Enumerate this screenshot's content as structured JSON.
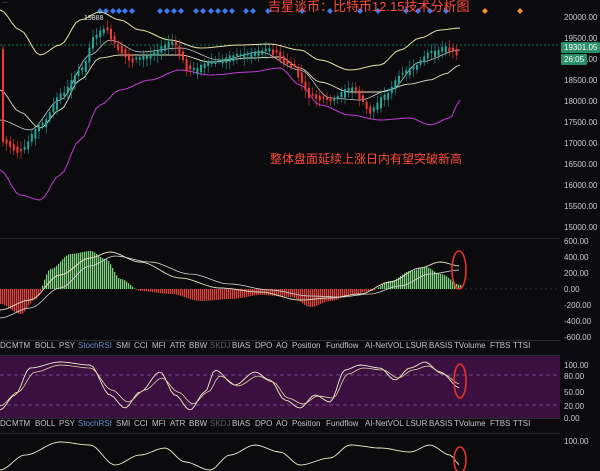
{
  "header": {
    "title": "吉星谈币：比特币12.15技术分析图",
    "top_left_partial": "...",
    "high_marker": "19888"
  },
  "annotation": {
    "text": "整体盘面延续上涨日内有望突破新高"
  },
  "price_axis": {
    "ticks": [
      "20000.00",
      "19500.00",
      "19000.00",
      "18500.00",
      "18000.00",
      "17500.00",
      "17000.00",
      "16500.00",
      "16000.00",
      "15500.00",
      "15000.00"
    ],
    "current_price": "19301.05",
    "countdown": "26:05"
  },
  "macd_axis": {
    "ticks": [
      "600.00",
      "400.00",
      "200.00",
      "0.00",
      "-200.00",
      "-400.00",
      "-600.00"
    ]
  },
  "rsi_axis": {
    "ticks": [
      "100.00",
      "80.00",
      "50.00",
      "20.00",
      "0.00"
    ]
  },
  "lower_axis": {
    "ticks": [
      "100.00"
    ]
  },
  "indicator_tabs": [
    {
      "label": "DC",
      "state": "normal"
    },
    {
      "label": "MTM",
      "state": "normal"
    },
    {
      "label": "BOLL",
      "state": "normal"
    },
    {
      "label": "PSY",
      "state": "normal"
    },
    {
      "label": "StochRSI",
      "state": "active"
    },
    {
      "label": "SMI",
      "state": "normal"
    },
    {
      "label": "CCI",
      "state": "normal"
    },
    {
      "label": "MFI",
      "state": "normal"
    },
    {
      "label": "ATR",
      "state": "normal"
    },
    {
      "label": "BBW",
      "state": "normal"
    },
    {
      "label": "SKDJ",
      "state": "dim"
    },
    {
      "label": "BIAS",
      "state": "normal"
    },
    {
      "label": "DPO",
      "state": "normal"
    },
    {
      "label": "AO",
      "state": "normal"
    },
    {
      "label": "Position",
      "state": "normal"
    },
    {
      "label": "Fundflow",
      "state": "normal"
    },
    {
      "label": "AI-NetVOL",
      "state": "normal"
    },
    {
      "label": "LSUR",
      "state": "normal"
    },
    {
      "label": "BASIS",
      "state": "normal"
    },
    {
      "label": "TVolume",
      "state": "normal"
    },
    {
      "label": "FTBS",
      "state": "normal"
    },
    {
      "label": "TTSI",
      "state": "normal"
    }
  ],
  "colors": {
    "up": "#26a69a",
    "down": "#ef3b36",
    "band_upper": "#e8e6a0",
    "band_lower": "#c23ed6",
    "macd_up": "#7bd17b",
    "macd_down": "#e0433d",
    "title": "#ff4b3a",
    "rsi_fill": "#3b0f3f",
    "highlight": "#e8322b"
  },
  "icons": [
    "blue-diamond-marker-icon",
    "orange-diamond-marker-icon",
    "red-ellipse-highlight-icon"
  ]
}
